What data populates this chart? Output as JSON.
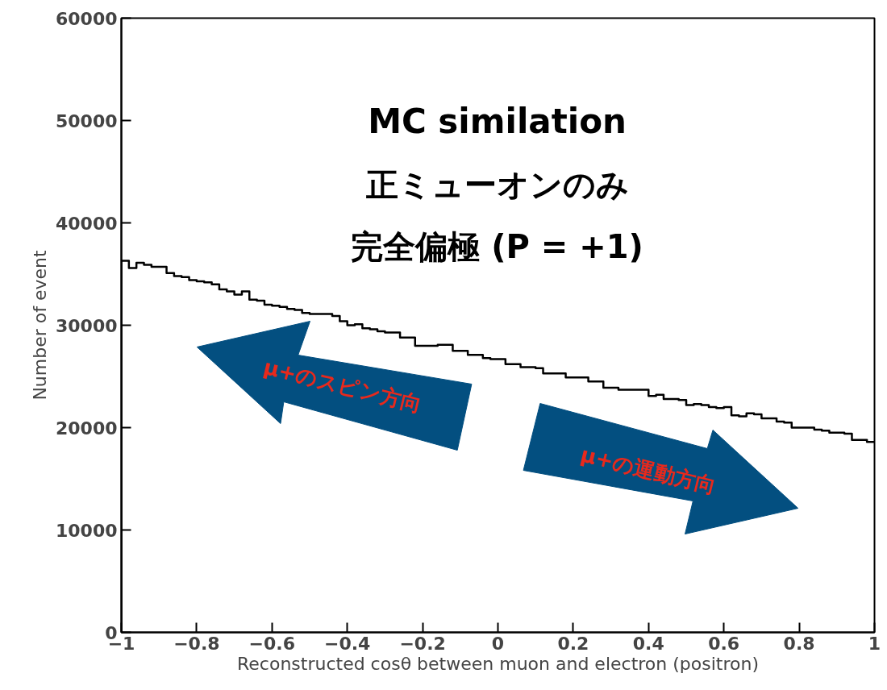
{
  "chart_data": {
    "type": "histogram",
    "xlabel": "Reconstructed cosθ between muon and electron (positron)",
    "ylabel": "Number of event",
    "bins": [
      -1,
      -0.98,
      -0.96,
      -0.94,
      -0.92,
      -0.9,
      -0.88,
      -0.86,
      -0.84,
      -0.82,
      -0.8,
      -0.78,
      -0.76,
      -0.74,
      -0.72,
      -0.7,
      -0.68,
      -0.66,
      -0.64,
      -0.62,
      -0.6,
      -0.58,
      -0.56,
      -0.54,
      -0.52,
      -0.5,
      -0.48,
      -0.46,
      -0.44,
      -0.42,
      -0.4,
      -0.38,
      -0.36,
      -0.34,
      -0.32,
      -0.3,
      -0.28,
      -0.26,
      -0.24,
      -0.22,
      -0.2,
      -0.18,
      -0.16,
      -0.14,
      -0.12,
      -0.1,
      -0.08,
      -0.06,
      -0.04,
      -0.02,
      0,
      0.02,
      0.04,
      0.06,
      0.08,
      0.1,
      0.12,
      0.14,
      0.16,
      0.18,
      0.2,
      0.22,
      0.24,
      0.26,
      0.28,
      0.3,
      0.32,
      0.34,
      0.36,
      0.38,
      0.4,
      0.42,
      0.44,
      0.46,
      0.48,
      0.5,
      0.52,
      0.54,
      0.56,
      0.58,
      0.6,
      0.62,
      0.64,
      0.66,
      0.68,
      0.7,
      0.72,
      0.74,
      0.76,
      0.78,
      0.8,
      0.82,
      0.84,
      0.86,
      0.88,
      0.9,
      0.92,
      0.94,
      0.96,
      0.98,
      1
    ],
    "values": [
      36300,
      35600,
      36100,
      35900,
      35700,
      35700,
      35100,
      34800,
      34700,
      34400,
      34300,
      34200,
      34000,
      33500,
      33300,
      33000,
      33300,
      32500,
      32400,
      32000,
      31900,
      31800,
      31600,
      31500,
      31200,
      31100,
      31100,
      31100,
      30900,
      30400,
      30000,
      30100,
      29700,
      29600,
      29400,
      29300,
      29300,
      28800,
      28800,
      28000,
      28000,
      28000,
      28100,
      28100,
      27500,
      27500,
      27100,
      27100,
      26800,
      26700,
      26700,
      26200,
      26200,
      25900,
      25900,
      25800,
      25300,
      25300,
      25300,
      24900,
      24900,
      24900,
      24500,
      24500,
      23900,
      23900,
      23700,
      23700,
      23700,
      23700,
      23100,
      23200,
      22800,
      22800,
      22700,
      22200,
      22300,
      22200,
      22000,
      21900,
      22000,
      21200,
      21100,
      21400,
      21300,
      20900,
      20900,
      20600,
      20500,
      20000,
      20000,
      20000,
      19800,
      19700,
      19500,
      19500,
      19400,
      18800,
      18800,
      18600
    ],
    "color": "#000000",
    "xlim": [
      -1,
      1
    ],
    "xticks": [
      {
        "value": -1,
        "label": "−1"
      },
      {
        "value": -0.8,
        "label": "−0.8"
      },
      {
        "value": -0.6,
        "label": "−0.6"
      },
      {
        "value": -0.4,
        "label": "−0.4"
      },
      {
        "value": -0.2,
        "label": "−0.2"
      },
      0,
      0.2,
      0.4,
      0.6,
      0.8,
      1
    ],
    "ylim": [
      0,
      60000
    ],
    "yticks": [
      0,
      10000,
      20000,
      30000,
      40000,
      50000,
      60000
    ],
    "grid": false,
    "annotations": [
      "MC similation",
      "正ミューオンのみ",
      "完全偏極 (P = +1)",
      "μ+のスピン方向",
      "μ+の運動方向"
    ]
  }
}
